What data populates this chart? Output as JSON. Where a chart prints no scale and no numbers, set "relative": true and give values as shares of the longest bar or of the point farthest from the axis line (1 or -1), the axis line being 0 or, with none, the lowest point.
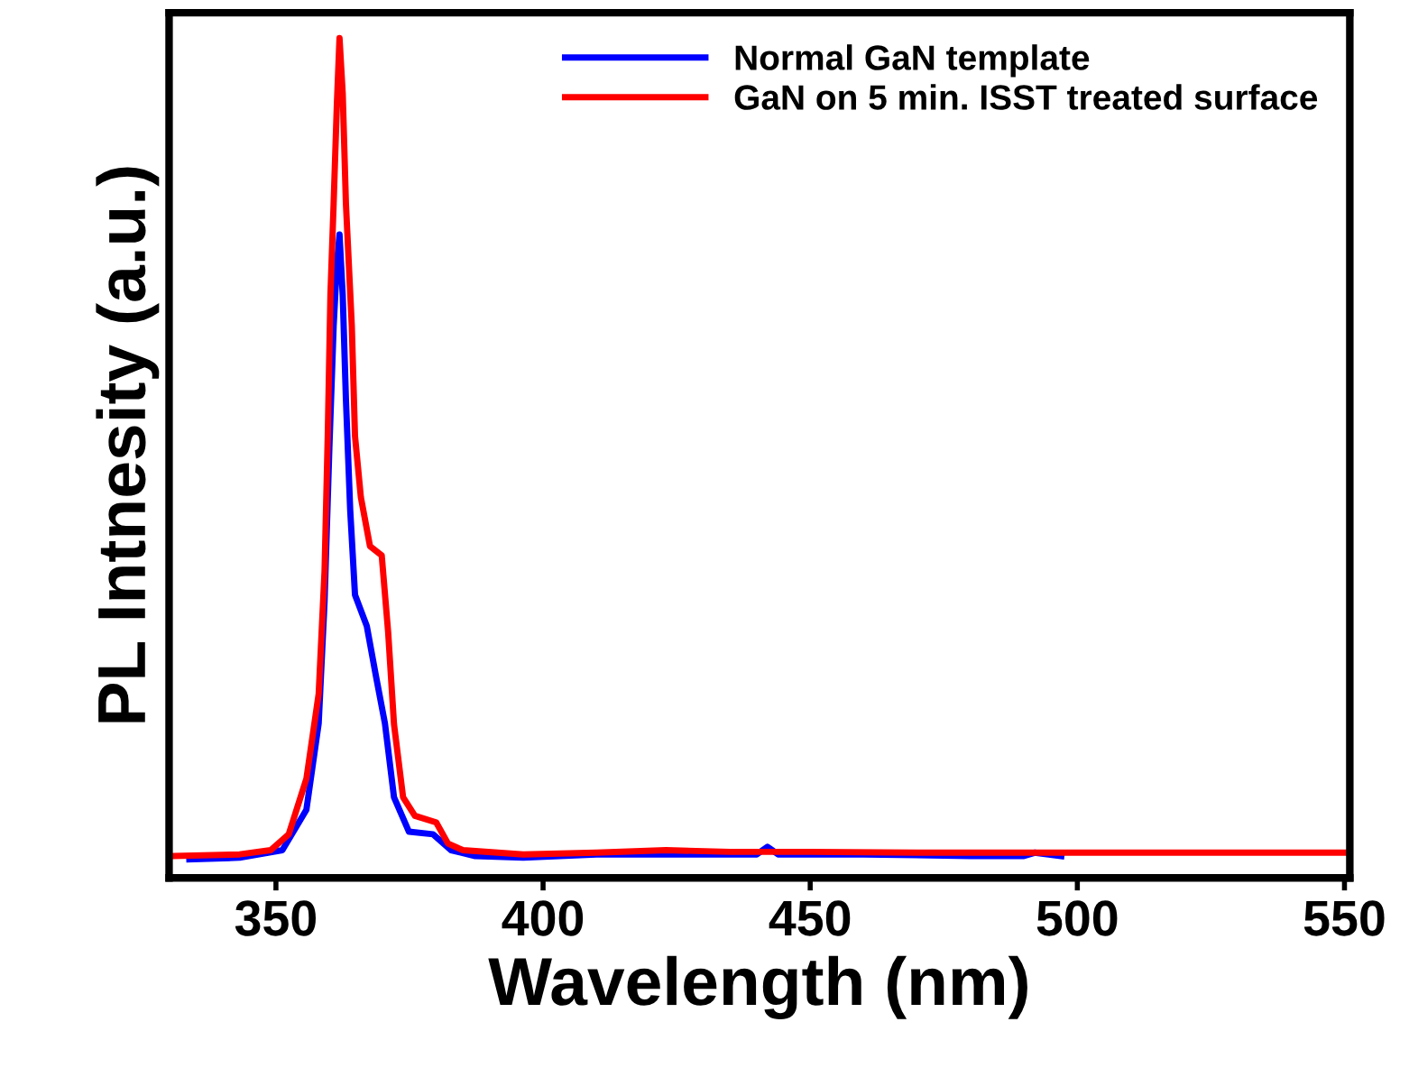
{
  "chart_data": {
    "type": "line",
    "relative": true,
    "xlabel": "Wavelength (nm)",
    "ylabel": "PL Intnesity (a.u.)",
    "xlim": [
      330,
      551
    ],
    "xticks": [
      350,
      400,
      450,
      500,
      550
    ],
    "legend": "top right",
    "grid": false,
    "tick_labels": "x",
    "series": [
      {
        "name": "Normal GaN template",
        "color": "#0000ff",
        "x": [
          333.8,
          343.2,
          351.2,
          355.7,
          358,
          359.1,
          360,
          360.8,
          361.4,
          361.9,
          362.5,
          363.1,
          363.9,
          364.8,
          367,
          368.7,
          370.4,
          372.1,
          374.9,
          379.4,
          382.8,
          387.3,
          396.3,
          410,
          425,
          440,
          442,
          444,
          450,
          460,
          480,
          490,
          492,
          497
        ],
        "values": [
          0.022,
          0.024,
          0.033,
          0.081,
          0.184,
          0.329,
          0.512,
          0.657,
          0.73,
          0.766,
          0.694,
          0.57,
          0.438,
          0.337,
          0.3,
          0.241,
          0.184,
          0.096,
          0.055,
          0.052,
          0.033,
          0.026,
          0.024,
          0.028,
          0.028,
          0.028,
          0.037,
          0.028,
          0.028,
          0.028,
          0.026,
          0.026,
          0.03,
          0.026
        ]
      },
      {
        "name": "GaN on 5 min. ISST treated surface",
        "color": "#ff0000",
        "x": [
          331,
          343.2,
          349,
          352.4,
          355.7,
          358,
          359.1,
          359.7,
          360.2,
          360.8,
          361.4,
          361.9,
          362.5,
          363.1,
          364.2,
          364.8,
          365.9,
          367.6,
          369.8,
          371,
          372.1,
          373.8,
          376,
          380,
          382.2,
          385,
          396.3,
          410,
          423,
          435,
          450,
          470,
          500,
          550
        ],
        "values": [
          0.026,
          0.028,
          0.033,
          0.052,
          0.118,
          0.219,
          0.365,
          0.526,
          0.694,
          0.803,
          0.92,
          1.0,
          0.934,
          0.803,
          0.657,
          0.526,
          0.453,
          0.395,
          0.384,
          0.293,
          0.183,
          0.096,
          0.074,
          0.066,
          0.041,
          0.033,
          0.028,
          0.03,
          0.033,
          0.031,
          0.031,
          0.03,
          0.03,
          0.03
        ]
      }
    ]
  }
}
